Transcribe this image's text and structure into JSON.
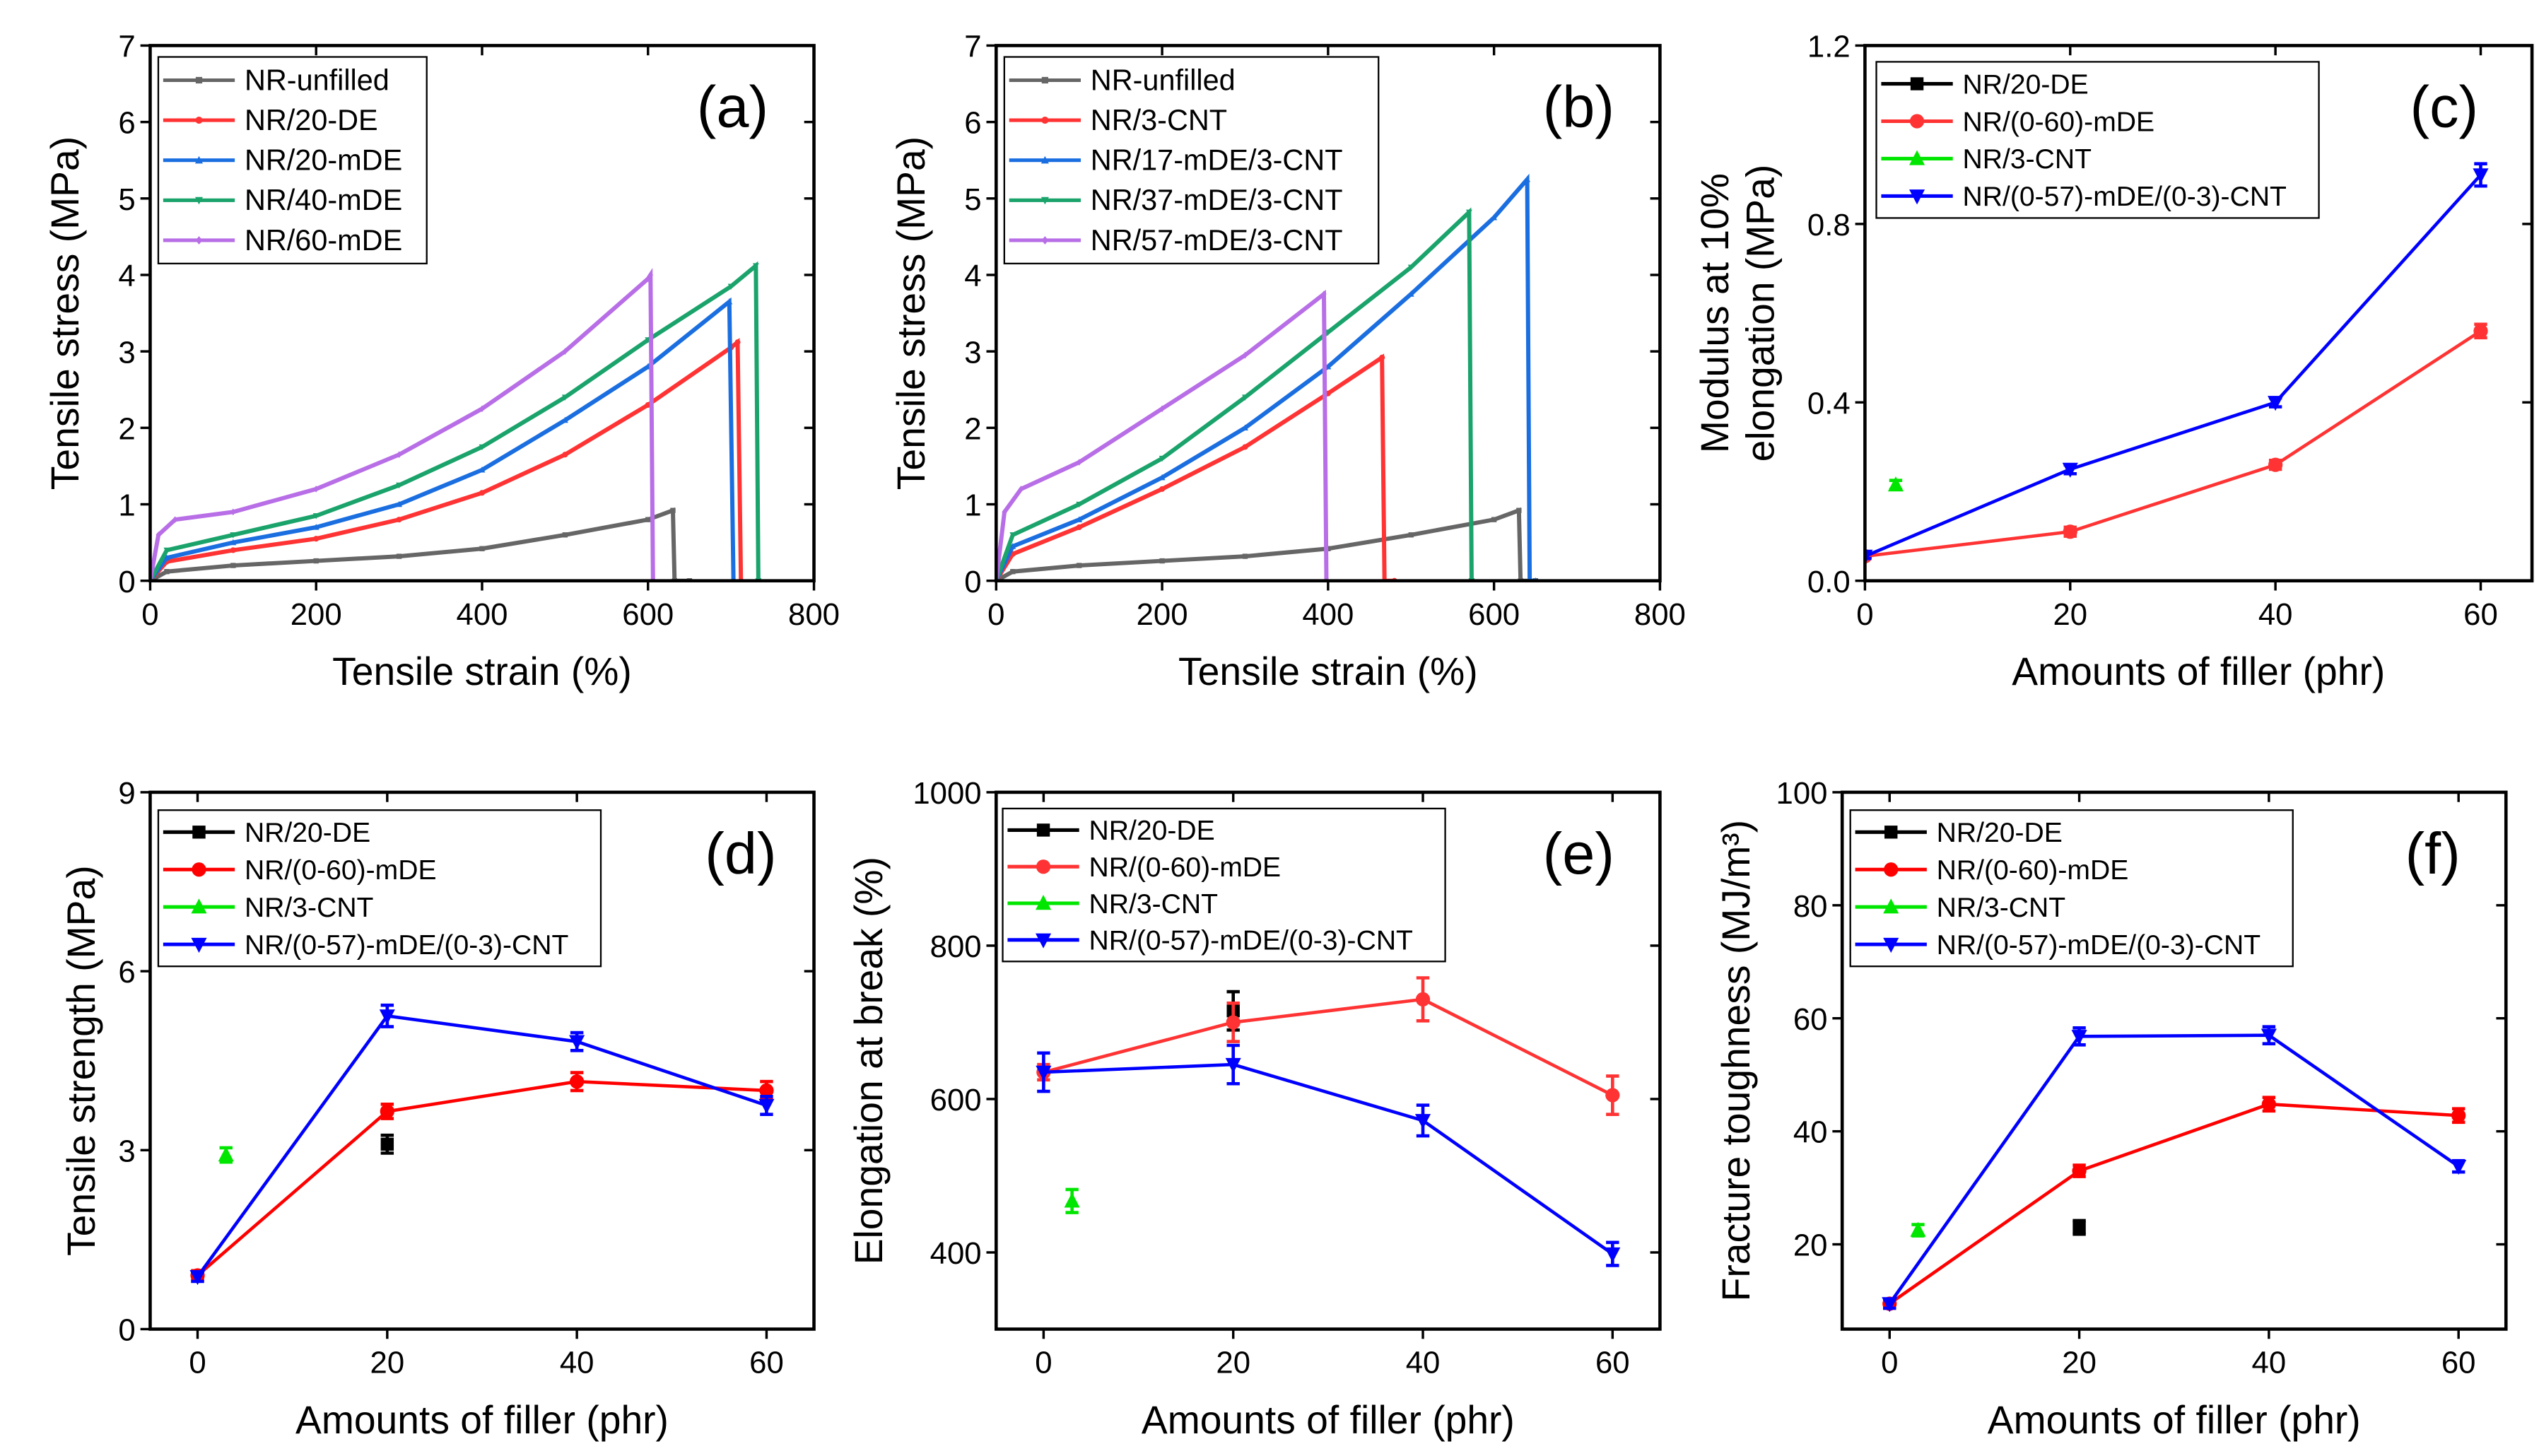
{
  "chart_data": [
    {
      "panel": "(a)",
      "type": "line",
      "xlabel": "Tensile strain (%)",
      "ylabel": "Tensile stress (MPa)",
      "xlim": [
        0,
        800
      ],
      "ylim": [
        0,
        7
      ],
      "xticks": [
        0,
        200,
        400,
        600,
        800
      ],
      "yticks": [
        0,
        1,
        2,
        3,
        4,
        5,
        6,
        7
      ],
      "legend": "top-left",
      "series": [
        {
          "name": "NR-unfilled",
          "color": "#666666",
          "marker": "square",
          "x": [
            0,
            20,
            100,
            200,
            300,
            400,
            500,
            600,
            630,
            632,
            650
          ],
          "y": [
            0,
            0.12,
            0.2,
            0.26,
            0.32,
            0.42,
            0.6,
            0.8,
            0.92,
            0,
            0
          ]
        },
        {
          "name": "NR/20-DE",
          "color": "#ff3333",
          "marker": "circle",
          "x": [
            0,
            20,
            100,
            200,
            300,
            400,
            500,
            600,
            700,
            708,
            712
          ],
          "y": [
            0,
            0.25,
            0.4,
            0.55,
            0.8,
            1.15,
            1.65,
            2.3,
            3.05,
            3.12,
            0
          ]
        },
        {
          "name": "NR/20-mDE",
          "color": "#1a6ee0",
          "marker": "triangle-up",
          "x": [
            0,
            20,
            100,
            200,
            300,
            400,
            500,
            600,
            698,
            703
          ],
          "y": [
            0,
            0.3,
            0.5,
            0.7,
            1.0,
            1.45,
            2.1,
            2.8,
            3.65,
            0
          ]
        },
        {
          "name": "NR/40-mDE",
          "color": "#1aa36b",
          "marker": "triangle-down",
          "x": [
            0,
            20,
            100,
            200,
            300,
            400,
            500,
            600,
            700,
            730,
            733
          ],
          "y": [
            0,
            0.4,
            0.6,
            0.85,
            1.25,
            1.75,
            2.4,
            3.15,
            3.85,
            4.12,
            0
          ]
        },
        {
          "name": "NR/60-mDE",
          "color": "#b86ee6",
          "marker": "diamond",
          "x": [
            0,
            10,
            30,
            100,
            200,
            300,
            400,
            500,
            600,
            603,
            606
          ],
          "y": [
            0,
            0.6,
            0.8,
            0.9,
            1.2,
            1.65,
            2.25,
            3.0,
            3.95,
            4.0,
            0
          ]
        }
      ]
    },
    {
      "panel": "(b)",
      "type": "line",
      "xlabel": "Tensile strain (%)",
      "ylabel": "Tensile stress (MPa)",
      "xlim": [
        0,
        800
      ],
      "ylim": [
        0,
        7
      ],
      "xticks": [
        0,
        200,
        400,
        600,
        800
      ],
      "yticks": [
        0,
        1,
        2,
        3,
        4,
        5,
        6,
        7
      ],
      "legend": "top-left",
      "series": [
        {
          "name": "NR-unfilled",
          "color": "#666666",
          "marker": "square",
          "x": [
            0,
            20,
            100,
            200,
            300,
            400,
            500,
            600,
            630,
            632,
            650
          ],
          "y": [
            0,
            0.12,
            0.2,
            0.26,
            0.32,
            0.42,
            0.6,
            0.8,
            0.92,
            0,
            0
          ]
        },
        {
          "name": "NR/3-CNT",
          "color": "#ff3333",
          "marker": "circle",
          "x": [
            0,
            20,
            100,
            200,
            300,
            400,
            465,
            468,
            480
          ],
          "y": [
            0,
            0.35,
            0.7,
            1.2,
            1.75,
            2.45,
            2.92,
            0,
            0
          ]
        },
        {
          "name": "NR/17-mDE/3-CNT",
          "color": "#1a6ee0",
          "marker": "triangle-up",
          "x": [
            0,
            20,
            100,
            200,
            300,
            400,
            500,
            600,
            640,
            643,
            650
          ],
          "y": [
            0,
            0.45,
            0.8,
            1.35,
            2.0,
            2.8,
            3.75,
            4.75,
            5.25,
            0,
            0
          ]
        },
        {
          "name": "NR/37-mDE/3-CNT",
          "color": "#1aa36b",
          "marker": "triangle-down",
          "x": [
            0,
            20,
            100,
            200,
            300,
            400,
            500,
            570,
            573
          ],
          "y": [
            0,
            0.6,
            1.0,
            1.6,
            2.4,
            3.25,
            4.1,
            4.82,
            0
          ]
        },
        {
          "name": "NR/57-mDE/3-CNT",
          "color": "#b86ee6",
          "marker": "diamond",
          "x": [
            0,
            10,
            30,
            100,
            200,
            300,
            395,
            398
          ],
          "y": [
            0,
            0.9,
            1.2,
            1.55,
            2.25,
            2.95,
            3.75,
            0
          ]
        }
      ]
    },
    {
      "panel": "(c)",
      "type": "line",
      "xlabel": "Amounts of filler (phr)",
      "ylabel": "Modulus at 10%",
      "ylabel2": "elongation (MPa)",
      "xlim": [
        0,
        65
      ],
      "ylim": [
        0,
        1.2
      ],
      "xticks": [
        0,
        20,
        40,
        60
      ],
      "yticks": [
        0.0,
        0.4,
        0.8,
        1.2
      ],
      "ytick_labels": [
        "0.0",
        "0.4",
        "0.8",
        "1.2"
      ],
      "legend": "top-left",
      "series": [
        {
          "name": "NR/20-DE",
          "color": "#000000",
          "marker": "square",
          "x": [],
          "y": [],
          "err": []
        },
        {
          "name": "NR/(0-60)-mDE",
          "color": "#ff3333",
          "marker": "circle",
          "x": [
            0,
            20,
            40,
            60
          ],
          "y": [
            0.055,
            0.11,
            0.26,
            0.56
          ],
          "err": [
            0.005,
            0.01,
            0.01,
            0.015
          ]
        },
        {
          "name": "NR/3-CNT",
          "color": "#00e600",
          "marker": "triangle-up",
          "x": [
            3
          ],
          "y": [
            0.215
          ],
          "err": [
            0.01
          ]
        },
        {
          "name": "NR/(0-57)-mDE/(0-3)-CNT",
          "color": "#0000ff",
          "marker": "triangle-down",
          "x": [
            0,
            20,
            40,
            60
          ],
          "y": [
            0.055,
            0.25,
            0.4,
            0.91
          ],
          "err": [
            0.005,
            0.01,
            0.01,
            0.025
          ]
        }
      ]
    },
    {
      "panel": "(d)",
      "type": "line",
      "xlabel": "Amounts of filler (phr)",
      "ylabel": "Tensile strength (MPa)",
      "xlim": [
        -5,
        65
      ],
      "ylim": [
        0,
        9
      ],
      "xticks": [
        0,
        20,
        40,
        60
      ],
      "yticks": [
        0,
        3,
        6,
        9
      ],
      "legend": "top-left",
      "series": [
        {
          "name": "NR/20-DE",
          "color": "#000000",
          "marker": "square",
          "x": [
            20
          ],
          "y": [
            3.1
          ],
          "err": [
            0.15
          ]
        },
        {
          "name": "NR/(0-60)-mDE",
          "color": "#ff0000",
          "marker": "circle",
          "x": [
            0,
            20,
            40,
            60
          ],
          "y": [
            0.9,
            3.65,
            4.15,
            4.0
          ],
          "err": [
            0.08,
            0.12,
            0.15,
            0.15
          ]
        },
        {
          "name": "NR/3-CNT",
          "color": "#00e600",
          "marker": "triangle-up",
          "x": [
            3
          ],
          "y": [
            2.92
          ],
          "err": [
            0.12
          ]
        },
        {
          "name": "NR/(0-57)-mDE/(0-3)-CNT",
          "color": "#0000ff",
          "marker": "triangle-down",
          "x": [
            0,
            20,
            40,
            60
          ],
          "y": [
            0.88,
            5.25,
            4.82,
            3.75
          ],
          "err": [
            0.08,
            0.18,
            0.15,
            0.15
          ]
        }
      ]
    },
    {
      "panel": "(e)",
      "type": "line",
      "xlabel": "Amounts of filler (phr)",
      "ylabel": "Elongation at break (%)",
      "xlim": [
        -5,
        65
      ],
      "ylim": [
        300,
        1000
      ],
      "xticks": [
        0,
        20,
        40,
        60
      ],
      "yticks": [
        400,
        600,
        800,
        1000
      ],
      "legend": "top-left",
      "series": [
        {
          "name": "NR/20-DE",
          "color": "#000000",
          "marker": "square",
          "x": [
            20
          ],
          "y": [
            715
          ],
          "err": [
            25
          ]
        },
        {
          "name": "NR/(0-60)-mDE",
          "color": "#ff3333",
          "marker": "circle",
          "x": [
            0,
            20,
            40,
            60
          ],
          "y": [
            635,
            700,
            730,
            605
          ],
          "err": [
            10,
            25,
            28,
            25
          ]
        },
        {
          "name": "NR/3-CNT",
          "color": "#00e600",
          "marker": "triangle-up",
          "x": [
            3
          ],
          "y": [
            467
          ],
          "err": [
            15
          ]
        },
        {
          "name": "NR/(0-57)-mDE/(0-3)-CNT",
          "color": "#0000ff",
          "marker": "triangle-down",
          "x": [
            0,
            20,
            40,
            60
          ],
          "y": [
            635,
            645,
            572,
            398
          ],
          "err": [
            25,
            25,
            20,
            15
          ]
        }
      ]
    },
    {
      "panel": "(f)",
      "type": "line",
      "xlabel": "Amounts of filler (phr)",
      "ylabel": "Fracture toughness (MJ/m³)",
      "xlim": [
        -5,
        65
      ],
      "ylim": [
        5,
        100
      ],
      "xticks": [
        0,
        20,
        40,
        60
      ],
      "yticks": [
        20,
        40,
        60,
        80,
        100
      ],
      "legend": "top-left",
      "series": [
        {
          "name": "NR/20-DE",
          "color": "#000000",
          "marker": "square",
          "x": [
            20
          ],
          "y": [
            23
          ],
          "err": [
            1.2
          ]
        },
        {
          "name": "NR/(0-60)-mDE",
          "color": "#ff0000",
          "marker": "circle",
          "x": [
            0,
            20,
            40,
            60
          ],
          "y": [
            9.5,
            33,
            44.8,
            42.8
          ],
          "err": [
            0.8,
            1.0,
            1.2,
            1.2
          ]
        },
        {
          "name": "NR/3-CNT",
          "color": "#00e600",
          "marker": "triangle-up",
          "x": [
            3
          ],
          "y": [
            22.5
          ],
          "err": [
            1.0
          ]
        },
        {
          "name": "NR/(0-57)-mDE/(0-3)-CNT",
          "color": "#0000ff",
          "marker": "triangle-down",
          "x": [
            0,
            20,
            40,
            60
          ],
          "y": [
            9.5,
            56.8,
            57,
            33.8
          ],
          "err": [
            0.8,
            1.5,
            1.5,
            1.0
          ]
        }
      ]
    }
  ]
}
